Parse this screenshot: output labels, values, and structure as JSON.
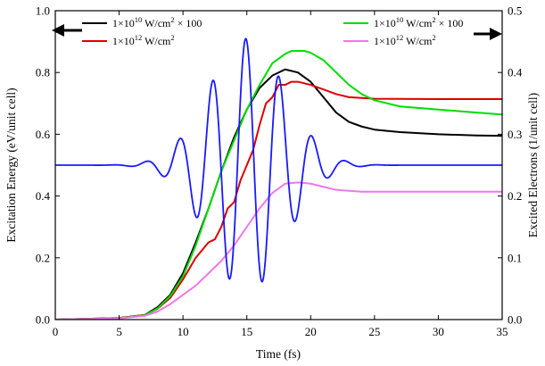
{
  "chart_data": {
    "type": "line",
    "xlabel": "Time (fs)",
    "ylabel_left": "Excitation Energy (eV/unit cell)",
    "ylabel_right": "Excited Electrons (1/unit cell)",
    "xlim": [
      0,
      35
    ],
    "ylim_left": [
      0,
      1.0
    ],
    "ylim_right": [
      0,
      0.5
    ],
    "x_ticks": [
      "0",
      "5",
      "10",
      "15",
      "20",
      "25",
      "30",
      "35"
    ],
    "y_ticks_left": [
      "0.0",
      "0.2",
      "0.4",
      "0.6",
      "0.8",
      "1.0"
    ],
    "y_ticks_right": [
      "0.0",
      "0.1",
      "0.2",
      "0.3",
      "0.4",
      "0.5"
    ],
    "grid": false,
    "legend_left": [
      {
        "base": "1×10",
        "exp": "10",
        "unit": " W/cm",
        "unit_exp": "2",
        "suffix": " × 100",
        "color": "#000000"
      },
      {
        "base": "1×10",
        "exp": "12",
        "unit": " W/cm",
        "unit_exp": "2",
        "suffix": "",
        "color": "#dd0000"
      }
    ],
    "legend_right": [
      {
        "base": "1×10",
        "exp": "10",
        "unit": " W/cm",
        "unit_exp": "2",
        "suffix": " × 100",
        "color": "#00dd00"
      },
      {
        "base": "1×10",
        "exp": "12",
        "unit": " W/cm",
        "unit_exp": "2",
        "suffix": "",
        "color": "#ee77ee"
      }
    ],
    "series": [
      {
        "axis": "left",
        "color": "#000000",
        "points": [
          [
            0,
            0
          ],
          [
            5,
            0.005
          ],
          [
            7,
            0.015
          ],
          [
            8,
            0.04
          ],
          [
            9,
            0.08
          ],
          [
            10,
            0.15
          ],
          [
            11,
            0.25
          ],
          [
            12,
            0.36
          ],
          [
            13,
            0.48
          ],
          [
            14,
            0.59
          ],
          [
            15,
            0.68
          ],
          [
            16,
            0.75
          ],
          [
            17,
            0.79
          ],
          [
            18,
            0.81
          ],
          [
            19,
            0.8
          ],
          [
            20,
            0.77
          ],
          [
            21,
            0.72
          ],
          [
            22,
            0.67
          ],
          [
            23,
            0.64
          ],
          [
            24,
            0.625
          ],
          [
            25,
            0.615
          ],
          [
            27,
            0.607
          ],
          [
            30,
            0.6
          ],
          [
            33,
            0.596
          ],
          [
            35,
            0.595
          ]
        ]
      },
      {
        "axis": "left",
        "color": "#dd0000",
        "points": [
          [
            0,
            0
          ],
          [
            5,
            0.005
          ],
          [
            7,
            0.015
          ],
          [
            8,
            0.035
          ],
          [
            9,
            0.07
          ],
          [
            10,
            0.13
          ],
          [
            11,
            0.2
          ],
          [
            12,
            0.25
          ],
          [
            12.5,
            0.26
          ],
          [
            13,
            0.3
          ],
          [
            13.5,
            0.36
          ],
          [
            14,
            0.38
          ],
          [
            14.5,
            0.45
          ],
          [
            15,
            0.5
          ],
          [
            15.5,
            0.55
          ],
          [
            16,
            0.63
          ],
          [
            16.5,
            0.7
          ],
          [
            17,
            0.72
          ],
          [
            17.5,
            0.76
          ],
          [
            18,
            0.76
          ],
          [
            18.5,
            0.77
          ],
          [
            19,
            0.77
          ],
          [
            19.5,
            0.765
          ],
          [
            20,
            0.76
          ],
          [
            21,
            0.745
          ],
          [
            22,
            0.73
          ],
          [
            23,
            0.72
          ],
          [
            25,
            0.715
          ],
          [
            30,
            0.714
          ],
          [
            35,
            0.714
          ]
        ]
      },
      {
        "axis": "right",
        "color": "#00dd00",
        "points": [
          [
            0,
            0
          ],
          [
            5,
            0.002
          ],
          [
            7,
            0.007
          ],
          [
            8,
            0.018
          ],
          [
            9,
            0.038
          ],
          [
            10,
            0.07
          ],
          [
            11,
            0.12
          ],
          [
            12,
            0.18
          ],
          [
            13,
            0.24
          ],
          [
            14,
            0.29
          ],
          [
            15,
            0.34
          ],
          [
            16,
            0.38
          ],
          [
            17,
            0.415
          ],
          [
            18,
            0.43
          ],
          [
            18.5,
            0.435
          ],
          [
            19.5,
            0.435
          ],
          [
            20,
            0.432
          ],
          [
            21,
            0.42
          ],
          [
            22,
            0.4
          ],
          [
            23,
            0.38
          ],
          [
            24,
            0.365
          ],
          [
            25,
            0.355
          ],
          [
            27,
            0.345
          ],
          [
            30,
            0.34
          ],
          [
            33,
            0.335
          ],
          [
            35,
            0.332
          ]
        ]
      },
      {
        "axis": "right",
        "color": "#ee77ee",
        "points": [
          [
            0,
            0
          ],
          [
            5,
            0.002
          ],
          [
            7,
            0.006
          ],
          [
            8,
            0.013
          ],
          [
            9,
            0.025
          ],
          [
            10,
            0.04
          ],
          [
            11,
            0.055
          ],
          [
            12,
            0.075
          ],
          [
            13,
            0.095
          ],
          [
            14,
            0.12
          ],
          [
            15,
            0.15
          ],
          [
            16,
            0.18
          ],
          [
            17,
            0.205
          ],
          [
            18,
            0.22
          ],
          [
            19,
            0.222
          ],
          [
            20,
            0.22
          ],
          [
            21,
            0.215
          ],
          [
            22,
            0.21
          ],
          [
            24,
            0.207
          ],
          [
            27,
            0.207
          ],
          [
            35,
            0.207
          ]
        ]
      },
      {
        "axis": "left",
        "color": "#1a1aff",
        "kind": "pulse",
        "center": 15,
        "baseline": 0.5,
        "amplitude": 0.41,
        "period": 2.6,
        "width": 4.2
      }
    ]
  }
}
